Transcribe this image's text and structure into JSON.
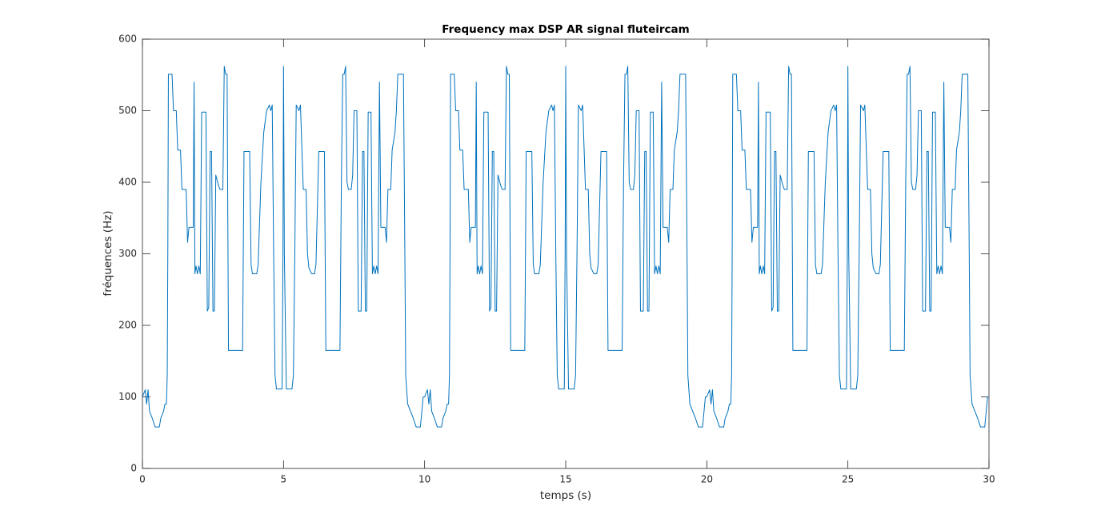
{
  "chart_data": {
    "type": "line",
    "title": "Frequency max DSP AR signal fluteircam",
    "x_label": "temps (s)",
    "y_label": "fréquences (Hz)",
    "xlim": [
      0,
      30
    ],
    "ylim": [
      0,
      600
    ],
    "xticks": [
      0,
      5,
      10,
      15,
      20,
      25,
      30
    ],
    "yticks": [
      0,
      100,
      200,
      300,
      400,
      500,
      600
    ],
    "grid": false,
    "series": [
      {
        "color": "#0072bd",
        "x": [
          0,
          0.1,
          0.15,
          0.2,
          0.25,
          0.35,
          0.45,
          0.6,
          0.65,
          0.75,
          0.8,
          0.85,
          0.88,
          0.9,
          0.92,
          1.05,
          1.1,
          1.2,
          1.25,
          1.35,
          1.4,
          1.55,
          1.6,
          1.65,
          1.8,
          1.83,
          1.86,
          1.9,
          1.95,
          2,
          2.05,
          2.1,
          2.25,
          2.3,
          2.35,
          2.4,
          2.45,
          2.5,
          2.55,
          2.6,
          2.7,
          2.75,
          2.85,
          2.9,
          2.95,
          3,
          3.05,
          3.55,
          3.6,
          3.8,
          3.85,
          3.9,
          4.05,
          4.1,
          4.2,
          4.3,
          4.4,
          4.5,
          4.55,
          4.6,
          4.65,
          4.7,
          4.75,
          4.95,
          4.98,
          5,
          5.03,
          5.1,
          5.3,
          5.35,
          5.4,
          5.45,
          5.55,
          5.6,
          5.7,
          5.8,
          5.85,
          5.9,
          6,
          6.1,
          6.15,
          6.25,
          6.45,
          6.5,
          7,
          7.05,
          7.1,
          7.15,
          7.2,
          7.25,
          7.3,
          7.4,
          7.45,
          7.5,
          7.6,
          7.65,
          7.75,
          7.8,
          7.85,
          7.9,
          7.95,
          8,
          8.1,
          8.15,
          8.2,
          8.25,
          8.3,
          8.35,
          8.4,
          8.45,
          8.6,
          8.65,
          8.7,
          8.8,
          8.85,
          8.95,
          9,
          9.05,
          9.25,
          9.3,
          9.33,
          9.4,
          9.5,
          9.6,
          9.7,
          9.85,
          9.95,
          10,
          10.1,
          10.15,
          10.2,
          10.25,
          10.35,
          10.45,
          10.6,
          10.65,
          10.75,
          10.8,
          10.85,
          10.88,
          10.9,
          10.92,
          11.05,
          11.1,
          11.2,
          11.25,
          11.35,
          11.4,
          11.55,
          11.6,
          11.65,
          11.8,
          11.83,
          11.86,
          11.9,
          11.95,
          12,
          12.05,
          12.1,
          12.25,
          12.3,
          12.35,
          12.4,
          12.45,
          12.5,
          12.55,
          12.6,
          12.7,
          12.75,
          12.85,
          12.9,
          12.95,
          13,
          13.05,
          13.55,
          13.6,
          13.8,
          13.85,
          13.9,
          14.05,
          14.1,
          14.2,
          14.3,
          14.4,
          14.5,
          14.55,
          14.6,
          14.65,
          14.7,
          14.75,
          14.95,
          14.98,
          15,
          15.03,
          15.1,
          15.3,
          15.35,
          15.4,
          15.45,
          15.55,
          15.6,
          15.7,
          15.8,
          15.85,
          15.9,
          16,
          16.1,
          16.15,
          16.25,
          16.45,
          16.5,
          17,
          17.05,
          17.1,
          17.15,
          17.2,
          17.25,
          17.3,
          17.4,
          17.45,
          17.5,
          17.6,
          17.65,
          17.75,
          17.8,
          17.85,
          17.9,
          17.95,
          18,
          18.1,
          18.15,
          18.2,
          18.25,
          18.3,
          18.35,
          18.4,
          18.45,
          18.6,
          18.65,
          18.7,
          18.8,
          18.85,
          18.95,
          19,
          19.05,
          19.25,
          19.3,
          19.33,
          19.4,
          19.5,
          19.6,
          19.7,
          19.85,
          19.95,
          20,
          20.1,
          20.15,
          20.2,
          20.25,
          20.35,
          20.45,
          20.6,
          20.65,
          20.75,
          20.8,
          20.85,
          20.88,
          20.9,
          20.92,
          21.05,
          21.1,
          21.2,
          21.25,
          21.35,
          21.4,
          21.55,
          21.6,
          21.65,
          21.8,
          21.83,
          21.86,
          21.9,
          21.95,
          22,
          22.05,
          22.1,
          22.25,
          22.3,
          22.35,
          22.4,
          22.45,
          22.5,
          22.55,
          22.6,
          22.7,
          22.75,
          22.85,
          22.9,
          22.95,
          23,
          23.05,
          23.55,
          23.6,
          23.8,
          23.85,
          23.9,
          24.05,
          24.1,
          24.2,
          24.3,
          24.4,
          24.5,
          24.55,
          24.6,
          24.65,
          24.7,
          24.75,
          24.95,
          24.98,
          25,
          25.03,
          25.1,
          25.3,
          25.35,
          25.4,
          25.45,
          25.55,
          25.6,
          25.7,
          25.8,
          25.85,
          25.9,
          26,
          26.1,
          26.15,
          26.25,
          26.45,
          26.5,
          27,
          27.05,
          27.1,
          27.15,
          27.2,
          27.25,
          27.3,
          27.4,
          27.45,
          27.5,
          27.6,
          27.65,
          27.75,
          27.8,
          27.85,
          27.9,
          27.95,
          28,
          28.1,
          28.15,
          28.2,
          28.25,
          28.3,
          28.35,
          28.4,
          28.45,
          28.6,
          28.65,
          28.7,
          28.8,
          28.85,
          28.95,
          29,
          29.05,
          29.25,
          29.3,
          29.33,
          29.4,
          29.5,
          29.6,
          29.7,
          29.85,
          29.95,
          30
        ],
        "values": [
          100,
          110,
          90,
          110,
          80,
          70,
          58,
          58,
          70,
          80,
          90,
          90,
          130,
          300,
          551,
          551,
          500,
          500,
          445,
          445,
          390,
          390,
          316,
          337,
          337,
          540,
          272,
          283,
          272,
          283,
          272,
          498,
          498,
          220,
          225,
          443,
          443,
          220,
          220,
          410,
          395,
          390,
          390,
          562,
          551,
          551,
          165,
          165,
          443,
          443,
          285,
          272,
          272,
          285,
          400,
          470,
          500,
          508,
          500,
          508,
          300,
          130,
          111,
          111,
          300,
          562,
          300,
          111,
          111,
          130,
          300,
          508,
          500,
          508,
          390,
          390,
          300,
          280,
          272,
          272,
          285,
          443,
          443,
          165,
          165,
          400,
          551,
          551,
          562,
          400,
          390,
          390,
          410,
          500,
          500,
          220,
          220,
          443,
          443,
          220,
          220,
          498,
          498,
          272,
          283,
          272,
          283,
          272,
          540,
          337,
          337,
          316,
          390,
          390,
          445,
          470,
          500,
          551,
          551,
          300,
          130,
          90,
          80,
          70,
          58,
          58,
          100,
          100,
          110,
          90,
          110,
          80,
          70,
          58,
          58,
          70,
          80,
          90,
          90,
          130,
          300,
          551,
          551,
          500,
          500,
          445,
          445,
          390,
          390,
          316,
          337,
          337,
          540,
          272,
          283,
          272,
          283,
          272,
          498,
          498,
          220,
          225,
          443,
          443,
          220,
          220,
          410,
          395,
          390,
          390,
          562,
          551,
          551,
          165,
          165,
          443,
          443,
          285,
          272,
          272,
          285,
          400,
          470,
          500,
          508,
          500,
          508,
          300,
          130,
          111,
          111,
          300,
          562,
          300,
          111,
          111,
          130,
          300,
          508,
          500,
          508,
          390,
          390,
          300,
          280,
          272,
          272,
          285,
          443,
          443,
          165,
          165,
          400,
          551,
          551,
          562,
          400,
          390,
          390,
          410,
          500,
          500,
          220,
          220,
          443,
          443,
          220,
          220,
          498,
          498,
          272,
          283,
          272,
          283,
          272,
          540,
          337,
          337,
          316,
          390,
          390,
          445,
          470,
          500,
          551,
          551,
          300,
          130,
          90,
          80,
          70,
          58,
          58,
          100,
          100,
          110,
          90,
          110,
          80,
          70,
          58,
          58,
          70,
          80,
          90,
          90,
          130,
          300,
          551,
          551,
          500,
          500,
          445,
          445,
          390,
          390,
          316,
          337,
          337,
          540,
          272,
          283,
          272,
          283,
          272,
          498,
          498,
          220,
          225,
          443,
          443,
          220,
          220,
          410,
          395,
          390,
          390,
          562,
          551,
          551,
          165,
          165,
          443,
          443,
          285,
          272,
          272,
          285,
          400,
          470,
          500,
          508,
          500,
          508,
          300,
          130,
          111,
          111,
          300,
          562,
          300,
          111,
          111,
          130,
          300,
          508,
          500,
          508,
          390,
          390,
          300,
          280,
          272,
          272,
          285,
          443,
          443,
          165,
          165,
          400,
          551,
          551,
          562,
          400,
          390,
          390,
          410,
          500,
          500,
          220,
          220,
          443,
          443,
          220,
          220,
          498,
          498,
          272,
          283,
          272,
          283,
          272,
          540,
          337,
          337,
          316,
          390,
          390,
          445,
          470,
          500,
          551,
          551,
          300,
          130,
          90,
          80,
          70,
          58,
          58,
          100,
          100
        ]
      }
    ]
  }
}
